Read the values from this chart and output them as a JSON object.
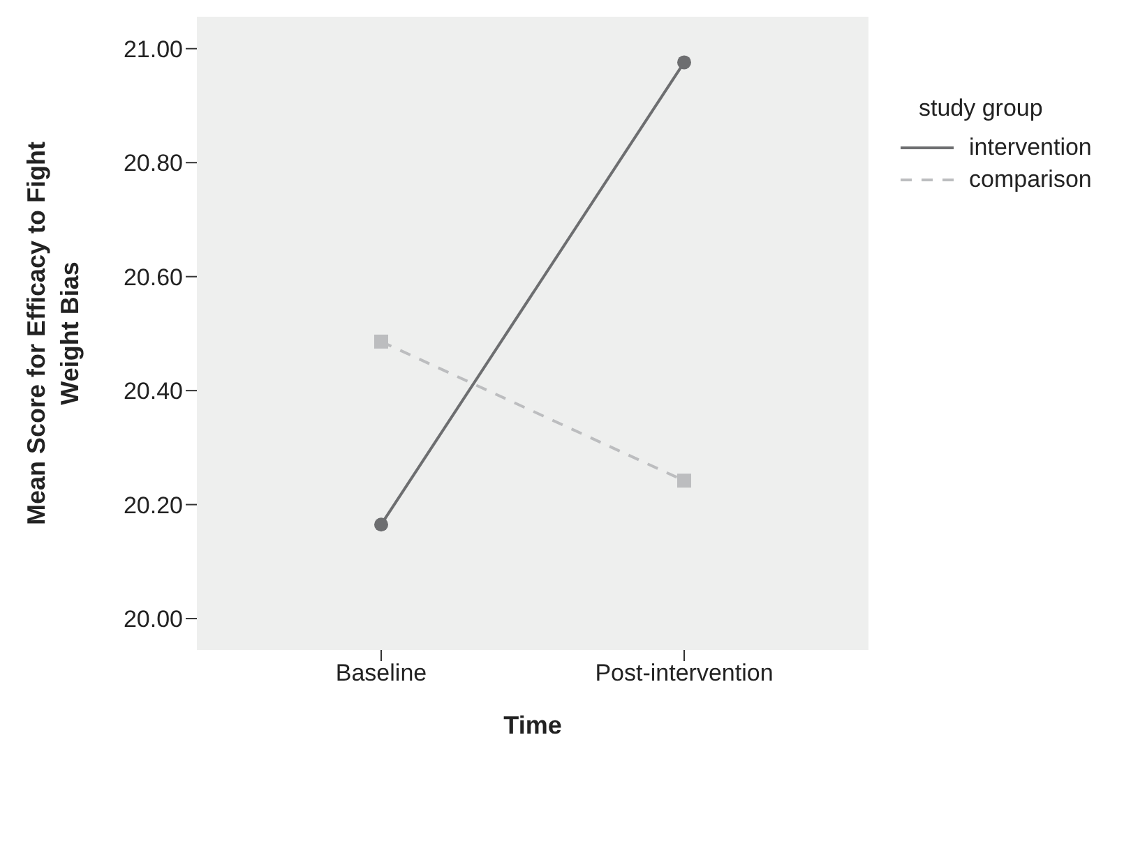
{
  "chart_data": {
    "type": "line",
    "xlabel": "Time",
    "ylabel": "Mean Score for Efficacy to Fight Weight Bias",
    "legend_title": "study group",
    "categories": [
      "Baseline",
      "Post-intervention"
    ],
    "series": [
      {
        "name": "intervention",
        "color": "#6d6e70",
        "values": [
          20.165,
          20.976
        ],
        "marker": "circle",
        "line_style": "solid"
      },
      {
        "name": "comparison",
        "color": "#bcbdbf",
        "values": [
          20.486,
          20.242
        ],
        "marker": "square",
        "line_style": "dashed"
      }
    ],
    "ylim": [
      19.945,
      21.056
    ],
    "yticks": [
      {
        "value": 20,
        "label": "20.00"
      },
      {
        "value": 20.2,
        "label": "20.20"
      },
      {
        "value": 20.4,
        "label": "20.40"
      },
      {
        "value": 20.6,
        "label": "20.60"
      },
      {
        "value": 20.8,
        "label": "20.80"
      },
      {
        "value": 21,
        "label": "21.00"
      }
    ],
    "grid": false,
    "legend": "top right"
  }
}
